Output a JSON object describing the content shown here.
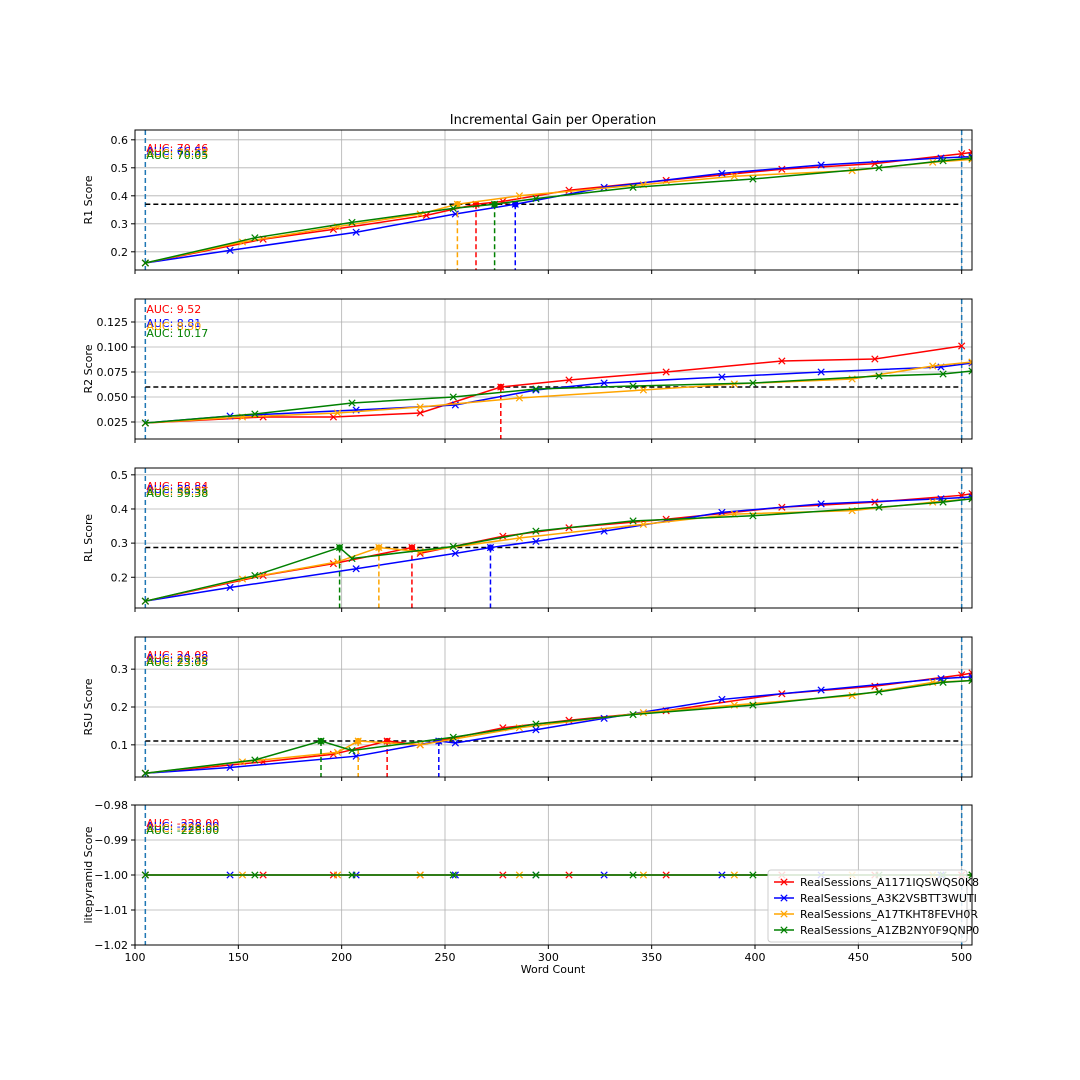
{
  "colors": {
    "red": "#ff0000",
    "blue": "#0000ff",
    "orange": "#ffa500",
    "green": "#008000",
    "vline": "#1f77b4",
    "threshold": "#000000",
    "grid": "#b0b0b0"
  },
  "chart_data": {
    "type": "line",
    "title": "Incremental Gain per Operation",
    "xlabel": "Word Count",
    "xlim": [
      100,
      505
    ],
    "xticks": [
      100,
      150,
      200,
      250,
      300,
      350,
      400,
      450,
      500
    ],
    "vlines": [
      105,
      500
    ],
    "legend": {
      "placement": "lower-right",
      "entries": [
        "RealSessions_A1171IQSWQS0K8",
        "RealSessions_A3K2VSBTT3WUTI",
        "RealSessions_A17TKHT8FEVH0R",
        "RealSessions_A1ZB2NY0F9QNP0"
      ]
    },
    "panels": [
      {
        "ylabel": "R1 Score",
        "ylim": [
          0.135,
          0.635
        ],
        "yticks": [
          0.2,
          0.3,
          0.4,
          0.5,
          0.6
        ],
        "ytick_labels": [
          "0.2",
          "0.3",
          "0.4",
          "0.5",
          "0.6"
        ],
        "threshold": 0.37,
        "series": [
          {
            "name": "RealSessions_A1171IQSWQS0K8",
            "color": "red",
            "auc": "AUC: 70.46",
            "x": [
              105,
              162,
              196,
              241,
              265,
              278,
              310,
              357,
              413,
              458,
              500,
              505
            ],
            "y": [
              0.16,
              0.245,
              0.28,
              0.33,
              0.37,
              0.38,
              0.42,
              0.455,
              0.495,
              0.515,
              0.55,
              0.555
            ],
            "crossing": 265
          },
          {
            "name": "RealSessions_A3K2VSBTT3WUTI",
            "color": "blue",
            "auc": "AUC: 66.51",
            "x": [
              105,
              146,
              207,
              255,
              284,
              327,
              384,
              432,
              490,
              505
            ],
            "y": [
              0.16,
              0.205,
              0.27,
              0.335,
              0.37,
              0.43,
              0.48,
              0.51,
              0.535,
              0.54
            ],
            "crossing": 284
          },
          {
            "name": "RealSessions_A17TKHT8FEVH0R",
            "color": "orange",
            "auc": "AUC: 70.63",
            "x": [
              105,
              152,
              198,
              238,
              256,
              286,
              346,
              390,
              447,
              486,
              505
            ],
            "y": [
              0.16,
              0.235,
              0.29,
              0.335,
              0.37,
              0.4,
              0.44,
              0.47,
              0.49,
              0.52,
              0.53
            ],
            "crossing": 256
          },
          {
            "name": "RealSessions_A1ZB2NY0F9QNP0",
            "color": "green",
            "auc": "AUC: 70.05",
            "x": [
              105,
              158,
              205,
              254,
              274,
              294,
              341,
              399,
              460,
              491,
              505
            ],
            "y": [
              0.16,
              0.25,
              0.305,
              0.355,
              0.37,
              0.39,
              0.43,
              0.46,
              0.5,
              0.525,
              0.535
            ],
            "crossing": 274
          }
        ]
      },
      {
        "ylabel": "R2 Score",
        "ylim": [
          0.008,
          0.148
        ],
        "yticks": [
          0.025,
          0.05,
          0.075,
          0.1,
          0.125
        ],
        "ytick_labels": [
          "0.025",
          "0.050",
          "0.075",
          "0.100",
          "0.125"
        ],
        "threshold": 0.06,
        "series": [
          {
            "name": "RealSessions_A1171IQSWQS0K8",
            "color": "red",
            "auc": "AUC: 9.52",
            "x": [
              105,
              162,
              196,
              238,
              277,
              310,
              357,
              413,
              458,
              500
            ],
            "y": [
              0.024,
              0.03,
              0.03,
              0.034,
              0.06,
              0.067,
              0.075,
              0.086,
              0.088,
              0.101
            ],
            "crossing": 277
          },
          {
            "name": "RealSessions_A3K2VSBTT3WUTI",
            "color": "blue",
            "auc": "AUC: 8.81",
            "x": [
              105,
              146,
              207,
              255,
              294,
              327,
              384,
              432,
              490,
              505
            ],
            "y": [
              0.024,
              0.031,
              0.037,
              0.042,
              0.057,
              0.064,
              0.07,
              0.075,
              0.08,
              0.084
            ],
            "crossing": null
          },
          {
            "name": "RealSessions_A17TKHT8FEVH0R",
            "color": "orange",
            "auc": "AUC: 8.50",
            "x": [
              105,
              152,
              198,
              238,
              286,
              346,
              390,
              447,
              486,
              505
            ],
            "y": [
              0.024,
              0.03,
              0.034,
              0.04,
              0.049,
              0.057,
              0.063,
              0.068,
              0.081,
              0.085
            ],
            "crossing": null
          },
          {
            "name": "RealSessions_A1ZB2NY0F9QNP0",
            "color": "green",
            "auc": "AUC: 10.17",
            "x": [
              105,
              158,
              205,
              254,
              294,
              341,
              399,
              460,
              491,
              505
            ],
            "y": [
              0.024,
              0.033,
              0.044,
              0.05,
              0.058,
              0.061,
              0.064,
              0.071,
              0.073,
              0.076
            ],
            "crossing": null
          }
        ]
      },
      {
        "ylabel": "RL Score",
        "ylim": [
          0.11,
          0.52
        ],
        "yticks": [
          0.2,
          0.3,
          0.4,
          0.5
        ],
        "ytick_labels": [
          "0.2",
          "0.3",
          "0.4",
          "0.5"
        ],
        "threshold": 0.287,
        "series": [
          {
            "name": "RealSessions_A1171IQSWQS0K8",
            "color": "red",
            "auc": "AUC: 58.84",
            "x": [
              105,
              162,
              196,
              234,
              238,
              278,
              310,
              357,
              413,
              458,
              500,
              505
            ],
            "y": [
              0.13,
              0.205,
              0.24,
              0.287,
              0.27,
              0.32,
              0.345,
              0.37,
              0.405,
              0.42,
              0.44,
              0.445
            ],
            "crossing": 234
          },
          {
            "name": "RealSessions_A3K2VSBTT3WUTI",
            "color": "blue",
            "auc": "AUC: 55.51",
            "x": [
              105,
              146,
              207,
              255,
              272,
              294,
              327,
              384,
              432,
              490,
              505
            ],
            "y": [
              0.13,
              0.17,
              0.225,
              0.27,
              0.287,
              0.305,
              0.335,
              0.39,
              0.415,
              0.43,
              0.435
            ],
            "crossing": 272
          },
          {
            "name": "RealSessions_A17TKHT8FEVH0R",
            "color": "orange",
            "auc": "AUC: 59.36",
            "x": [
              105,
              152,
              198,
              218,
              238,
              286,
              346,
              390,
              447,
              486,
              505
            ],
            "y": [
              0.13,
              0.195,
              0.245,
              0.287,
              0.275,
              0.315,
              0.355,
              0.385,
              0.395,
              0.42,
              0.43
            ],
            "crossing": 218
          },
          {
            "name": "RealSessions_A1ZB2NY0F9QNP0",
            "color": "green",
            "auc": "AUC: 59.38",
            "x": [
              105,
              158,
              199,
              205,
              254,
              294,
              341,
              399,
              460,
              491,
              505
            ],
            "y": [
              0.13,
              0.205,
              0.287,
              0.255,
              0.29,
              0.335,
              0.365,
              0.38,
              0.405,
              0.42,
              0.43
            ],
            "crossing": 199
          }
        ]
      },
      {
        "ylabel": "RSU Score",
        "ylim": [
          0.015,
          0.385
        ],
        "yticks": [
          0.1,
          0.2,
          0.3
        ],
        "ytick_labels": [
          "0.1",
          "0.2",
          "0.3"
        ],
        "threshold": 0.11,
        "series": [
          {
            "name": "RealSessions_A1171IQSWQS0K8",
            "color": "red",
            "auc": "AUC: 24.08",
            "x": [
              105,
              162,
              196,
              222,
              238,
              278,
              310,
              357,
              413,
              458,
              500,
              505
            ],
            "y": [
              0.025,
              0.055,
              0.075,
              0.11,
              0.1,
              0.145,
              0.165,
              0.19,
              0.235,
              0.255,
              0.285,
              0.29
            ],
            "crossing": 222
          },
          {
            "name": "RealSessions_A3K2VSBTT3WUTI",
            "color": "blue",
            "auc": "AUC: 20.58",
            "x": [
              105,
              146,
              207,
              247,
              255,
              294,
              327,
              384,
              432,
              490,
              505
            ],
            "y": [
              0.025,
              0.04,
              0.07,
              0.11,
              0.105,
              0.14,
              0.17,
              0.22,
              0.245,
              0.275,
              0.28
            ],
            "crossing": 247
          },
          {
            "name": "RealSessions_A17TKHT8FEVH0R",
            "color": "orange",
            "auc": "AUC: 23.12",
            "x": [
              105,
              152,
              198,
              208,
              238,
              286,
              346,
              390,
              447,
              486,
              505
            ],
            "y": [
              0.025,
              0.055,
              0.08,
              0.11,
              0.1,
              0.145,
              0.185,
              0.205,
              0.23,
              0.265,
              0.27
            ],
            "crossing": 208
          },
          {
            "name": "RealSessions_A1ZB2NY0F9QNP0",
            "color": "green",
            "auc": "AUC: 23.05",
            "x": [
              105,
              158,
              190,
              205,
              254,
              294,
              341,
              399,
              460,
              491,
              505
            ],
            "y": [
              0.025,
              0.06,
              0.11,
              0.085,
              0.12,
              0.155,
              0.18,
              0.205,
              0.24,
              0.265,
              0.27
            ],
            "crossing": 190
          }
        ]
      },
      {
        "ylabel": "litepyramid Score",
        "ylim": [
          -1.02,
          -0.98
        ],
        "yticks": [
          -1.02,
          -1.01,
          -1.0,
          -0.99,
          -0.98
        ],
        "ytick_labels": [
          "−1.02",
          "−1.01",
          "−1.00",
          "−0.99",
          "−0.98"
        ],
        "threshold": null,
        "series": [
          {
            "name": "RealSessions_A1171IQSWQS0K8",
            "color": "red",
            "auc": "AUC: -228.00",
            "x": [
              105,
              162,
              196,
              238,
              278,
              310,
              357,
              413,
              458,
              500
            ],
            "y": [
              -1,
              -1,
              -1,
              -1,
              -1,
              -1,
              -1,
              -1,
              -1,
              -1
            ],
            "crossing": null
          },
          {
            "name": "RealSessions_A3K2VSBTT3WUTI",
            "color": "blue",
            "auc": "AUC: -228.00",
            "x": [
              105,
              146,
              207,
              255,
              294,
              327,
              384,
              432,
              490,
              505
            ],
            "y": [
              -1,
              -1,
              -1,
              -1,
              -1,
              -1,
              -1,
              -1,
              -1,
              -1
            ],
            "crossing": null
          },
          {
            "name": "RealSessions_A17TKHT8FEVH0R",
            "color": "orange",
            "auc": "AUC: -228.00",
            "x": [
              105,
              152,
              198,
              238,
              286,
              346,
              390,
              447,
              486,
              505
            ],
            "y": [
              -1,
              -1,
              -1,
              -1,
              -1,
              -1,
              -1,
              -1,
              -1,
              -1
            ],
            "crossing": null
          },
          {
            "name": "RealSessions_A1ZB2NY0F9QNP0",
            "color": "green",
            "auc": "AUC: -228.00",
            "x": [
              105,
              158,
              205,
              254,
              294,
              341,
              399,
              460,
              491,
              505
            ],
            "y": [
              -1,
              -1,
              -1,
              -1,
              -1,
              -1,
              -1,
              -1,
              -1,
              -1
            ],
            "crossing": null
          }
        ]
      }
    ]
  }
}
